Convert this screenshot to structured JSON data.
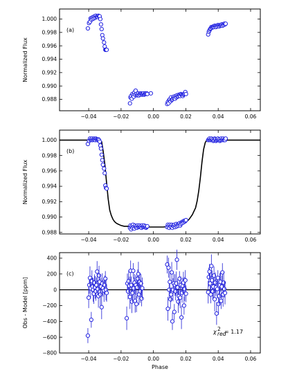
{
  "chart_data": [
    {
      "type": "scatter",
      "panel_label": "(a)",
      "xlabel": "",
      "ylabel": "Normalized Flux",
      "xlim": [
        -0.058,
        0.066
      ],
      "ylim": [
        0.9863,
        1.0015
      ],
      "xticks": [
        -0.04,
        -0.02,
        0.0,
        0.02,
        0.04,
        0.06
      ],
      "xtick_labels": [
        "−0.04",
        "−0.02",
        "0.00",
        "0.02",
        "0.04",
        "0.06"
      ],
      "yticks": [
        0.988,
        0.99,
        0.992,
        0.994,
        0.996,
        0.998,
        1.0
      ],
      "ytick_labels": [
        "0.988",
        "0.990",
        "0.992",
        "0.994",
        "0.996",
        "0.998",
        "1.000"
      ],
      "series": [
        {
          "x": [
            -0.0405,
            -0.0398,
            -0.0392,
            -0.0388,
            -0.0384,
            -0.038,
            -0.0376,
            -0.0372,
            -0.0368,
            -0.0364,
            -0.036,
            -0.0356,
            -0.0352,
            -0.0348,
            -0.0344,
            -0.034,
            -0.0336,
            -0.0332,
            -0.0328,
            -0.0324,
            -0.032,
            -0.0316,
            -0.0312,
            -0.0305,
            -0.0301,
            -0.0297,
            -0.0293,
            -0.0289,
            -0.0016,
            -0.0145,
            -0.0142,
            -0.0138,
            -0.0134,
            -0.013,
            -0.0126,
            -0.0122,
            -0.0118,
            -0.0114,
            -0.011,
            -0.0106,
            -0.0102,
            -0.0098,
            -0.0094,
            -0.009,
            -0.0086,
            -0.0082,
            -0.0078,
            -0.0074,
            -0.007,
            -0.0066,
            -0.0062,
            -0.0058,
            -0.0054,
            -0.005,
            -0.0046,
            -0.0042,
            -0.0038,
            0.0085,
            0.0089,
            0.0093,
            0.0097,
            0.0101,
            0.0105,
            0.0109,
            0.0113,
            0.0117,
            0.0121,
            0.0125,
            0.0129,
            0.0133,
            0.0137,
            0.0141,
            0.0145,
            0.0149,
            0.0153,
            0.0157,
            0.0161,
            0.0165,
            0.0169,
            0.0173,
            0.0177,
            0.0181,
            0.0185,
            0.0189,
            0.0193,
            0.0197,
            0.0201,
            0.0338,
            0.0342,
            0.0346,
            0.035,
            0.0354,
            0.0358,
            0.0362,
            0.0366,
            0.037,
            0.0374,
            0.0378,
            0.0382,
            0.0386,
            0.039,
            0.0394,
            0.0398,
            0.0402,
            0.0406,
            0.041,
            0.0414,
            0.0418,
            0.0422,
            0.0426,
            0.043,
            0.0434,
            0.0438,
            0.0442,
            0.0446
          ],
          "y": [
            0.9986,
            0.9994,
            0.9996,
            1.0001,
            0.9999,
            1.0002,
            1.0,
            1.0003,
            1.0001,
            1.0004,
            1.0002,
            1.0005,
            1.0003,
            1.0004,
            1.0003,
            1.0005,
            1.0004,
            1.0004,
            1.0,
            0.9992,
            0.9985,
            0.9976,
            0.9971,
            0.9965,
            0.9959,
            0.9954,
            0.9954,
            0.9954,
            0.9889,
            0.9874,
            0.9883,
            0.9885,
            0.9881,
            0.9888,
            0.9886,
            0.9884,
            0.989,
            0.9887,
            0.9893,
            0.9888,
            0.9886,
            0.9887,
            0.9889,
            0.9886,
            0.9888,
            0.9887,
            0.9889,
            0.9888,
            0.9887,
            0.9888,
            0.9889,
            0.9887,
            0.9888,
            0.9889,
            0.9888,
            0.9889,
            0.9888,
            0.9873,
            0.9876,
            0.9874,
            0.9879,
            0.988,
            0.9877,
            0.9883,
            0.9879,
            0.988,
            0.9882,
            0.9884,
            0.9882,
            0.9881,
            0.9885,
            0.9883,
            0.9886,
            0.9884,
            0.9885,
            0.9887,
            0.9886,
            0.9885,
            0.9888,
            0.9887,
            0.9886,
            0.9885,
            0.9887,
            0.9888,
            0.9889,
            0.9891,
            0.9888,
            0.9977,
            0.9981,
            0.9983,
            0.9985,
            0.9986,
            0.9988,
            0.9987,
            0.9988,
            0.9989,
            0.9988,
            0.999,
            0.9989,
            0.9988,
            0.999,
            0.9989,
            0.9991,
            0.999,
            0.9989,
            0.9991,
            0.999,
            0.9991,
            0.9992,
            0.999,
            0.9992,
            0.9991,
            0.9993,
            0.9992,
            0.9993
          ]
        }
      ]
    },
    {
      "type": "scatter",
      "panel_label": "(b)",
      "xlabel": "",
      "ylabel": "Normalized Flux",
      "xlim": [
        -0.058,
        0.066
      ],
      "ylim": [
        0.9878,
        1.0013
      ],
      "xticks": [
        -0.04,
        -0.02,
        0.0,
        0.02,
        0.04,
        0.06
      ],
      "xtick_labels": [
        "−0.04",
        "−0.02",
        "0.00",
        "0.02",
        "0.04",
        "0.06"
      ],
      "yticks": [
        0.988,
        0.99,
        0.992,
        0.994,
        0.996,
        0.998,
        1.0
      ],
      "ytick_labels": [
        "0.988",
        "0.990",
        "0.992",
        "0.994",
        "0.996",
        "0.998",
        "1.000"
      ],
      "model": {
        "x": [
          -0.058,
          -0.034,
          -0.032,
          -0.031,
          -0.03,
          -0.029,
          -0.028,
          -0.027,
          -0.026,
          -0.025,
          -0.024,
          -0.023,
          -0.022,
          -0.021,
          -0.02,
          -0.018,
          -0.016,
          -0.014,
          -0.012,
          -0.01,
          -0.006,
          -0.002,
          0.002,
          0.006,
          0.01,
          0.014,
          0.016,
          0.018,
          0.02,
          0.022,
          0.024,
          0.026,
          0.027,
          0.028,
          0.029,
          0.03,
          0.031,
          0.032,
          0.033,
          0.034,
          0.066
        ],
        "y": [
          1.0,
          1.0,
          0.9998,
          0.9985,
          0.9968,
          0.9946,
          0.9924,
          0.9909,
          0.9902,
          0.9897,
          0.9894,
          0.9892,
          0.9891,
          0.989,
          0.9889,
          0.9888,
          0.9888,
          0.9888,
          0.9887,
          0.9887,
          0.9887,
          0.9887,
          0.9887,
          0.9887,
          0.9888,
          0.9889,
          0.989,
          0.9891,
          0.9893,
          0.9897,
          0.9903,
          0.9912,
          0.9921,
          0.9934,
          0.9952,
          0.9972,
          0.9988,
          0.9997,
          1.0,
          1.0,
          1.0
        ]
      },
      "series": [
        {
          "x": [
            -0.0405,
            -0.0398,
            -0.0392,
            -0.0388,
            -0.0384,
            -0.038,
            -0.0376,
            -0.0372,
            -0.0368,
            -0.0364,
            -0.036,
            -0.0356,
            -0.0352,
            -0.0348,
            -0.0344,
            -0.034,
            -0.0336,
            -0.0332,
            -0.0328,
            -0.0324,
            -0.032,
            -0.0316,
            -0.0312,
            -0.0305,
            -0.0301,
            -0.0297,
            -0.0293,
            -0.0289,
            -0.0145,
            -0.0142,
            -0.0138,
            -0.0134,
            -0.013,
            -0.0126,
            -0.0122,
            -0.0118,
            -0.0114,
            -0.011,
            -0.0106,
            -0.0102,
            -0.0098,
            -0.0094,
            -0.009,
            -0.0086,
            -0.0082,
            -0.0078,
            -0.0074,
            -0.007,
            -0.0066,
            -0.0062,
            -0.0058,
            -0.0054,
            -0.005,
            -0.0046,
            -0.0042,
            -0.0038,
            0.0085,
            0.0089,
            0.0093,
            0.0097,
            0.0101,
            0.0105,
            0.0109,
            0.0113,
            0.0117,
            0.0121,
            0.0125,
            0.0129,
            0.0133,
            0.0137,
            0.0141,
            0.0145,
            0.0149,
            0.0153,
            0.0157,
            0.0161,
            0.0165,
            0.0169,
            0.0173,
            0.0177,
            0.0181,
            0.0185,
            0.0189,
            0.0193,
            0.0197,
            0.0201,
            0.0338,
            0.0342,
            0.0346,
            0.035,
            0.0354,
            0.0358,
            0.0362,
            0.0366,
            0.037,
            0.0374,
            0.0378,
            0.0382,
            0.0386,
            0.039,
            0.0394,
            0.0398,
            0.0402,
            0.0406,
            0.041,
            0.0414,
            0.0418,
            0.0422,
            0.0426,
            0.043,
            0.0434,
            0.0438,
            0.0442,
            0.0446
          ],
          "y": [
            0.9995,
            0.9999,
            1.0002,
            1.0,
            1.0001,
            1.0002,
            1.0,
            1.0001,
            1.0002,
            1.0001,
            1.0,
            1.0002,
            1.0001,
            1.0,
            1.0001,
            1.0001,
            1.0,
            0.9998,
            0.9993,
            0.9989,
            0.9981,
            0.9974,
            0.9968,
            0.9963,
            0.9957,
            0.9941,
            0.9938,
            0.9937,
            0.9886,
            0.9889,
            0.9884,
            0.9888,
            0.9886,
            0.989,
            0.9887,
            0.9885,
            0.9889,
            0.9887,
            0.9888,
            0.9886,
            0.9889,
            0.9887,
            0.9888,
            0.9889,
            0.9887,
            0.9888,
            0.9886,
            0.9889,
            0.9887,
            0.9888,
            0.9889,
            0.9887,
            0.9888,
            0.9886,
            0.9887,
            0.9888,
            0.9887,
            0.989,
            0.9888,
            0.9886,
            0.989,
            0.9888,
            0.9887,
            0.989,
            0.9886,
            0.9889,
            0.9888,
            0.989,
            0.9887,
            0.9889,
            0.9891,
            0.9888,
            0.989,
            0.9889,
            0.9891,
            0.9892,
            0.9889,
            0.9891,
            0.9893,
            0.9892,
            0.9894,
            0.9893,
            0.9895,
            0.9894,
            0.9895,
            0.9896,
            1.0,
            1.0001,
            1.0002,
            1.0,
            1.0001,
            1.0002,
            1.0,
            1.0001,
            0.9999,
            1.0,
            1.0002,
            1.0001,
            0.9999,
            1.0,
            1.0001,
            1.0002,
            1.0,
            1.0001,
            0.9999,
            1.0,
            1.0002,
            1.0,
            1.0001,
            1.0002,
            1.0,
            1.0001,
            1.0,
            1.0002
          ]
        }
      ]
    },
    {
      "type": "scatter",
      "panel_label": "(c)",
      "xlabel": "Phase",
      "ylabel": "Obs - Model [ppm]",
      "xlim": [
        -0.058,
        0.066
      ],
      "ylim": [
        -800,
        470
      ],
      "xticks": [
        -0.04,
        -0.02,
        0.0,
        0.02,
        0.04,
        0.06
      ],
      "xtick_labels": [
        "−0.04",
        "−0.02",
        "0.00",
        "0.02",
        "0.04",
        "0.06"
      ],
      "yticks": [
        -800,
        -600,
        -400,
        -200,
        0,
        200,
        400
      ],
      "ytick_labels": [
        "−800",
        "−600",
        "−400",
        "−200",
        "0",
        "200",
        "400"
      ],
      "annotation": {
        "prefix": "χ",
        "superscript": "2",
        "subscript": "red",
        "value": "= 1.17"
      },
      "series": [
        {
          "x": [
            -0.0405,
            -0.04,
            -0.0396,
            -0.0392,
            -0.0388,
            -0.0384,
            -0.038,
            -0.0376,
            -0.0372,
            -0.0368,
            -0.0364,
            -0.036,
            -0.0356,
            -0.0352,
            -0.0348,
            -0.0344,
            -0.034,
            -0.0336,
            -0.0332,
            -0.0328,
            -0.0324,
            -0.032,
            -0.0316,
            -0.0312,
            -0.0305,
            -0.0301,
            -0.0297,
            -0.0293,
            -0.0289,
            -0.0165,
            -0.0161,
            -0.0157,
            -0.0153,
            -0.0149,
            -0.0145,
            -0.0141,
            -0.0137,
            -0.0133,
            -0.0129,
            -0.0125,
            -0.0121,
            -0.0117,
            -0.0113,
            -0.0109,
            -0.0105,
            -0.0101,
            -0.0097,
            -0.0093,
            -0.0089,
            -0.0085,
            -0.0081,
            -0.0077,
            -0.0073,
            -0.0069,
            0.0085,
            0.0089,
            0.0093,
            0.0097,
            0.0101,
            0.0105,
            0.0109,
            0.0113,
            0.0117,
            0.0121,
            0.0125,
            0.0129,
            0.0133,
            0.0137,
            0.0141,
            0.0145,
            0.0149,
            0.0153,
            0.0157,
            0.0161,
            0.0165,
            0.0169,
            0.0173,
            0.0177,
            0.0181,
            0.0185,
            0.0189,
            0.0193,
            0.0197,
            0.0201,
            0.0338,
            0.0342,
            0.0346,
            0.035,
            0.0354,
            0.0358,
            0.0362,
            0.0366,
            0.037,
            0.0374,
            0.0378,
            0.0382,
            0.0386,
            0.039,
            0.0394,
            0.0398,
            0.0402,
            0.0406,
            0.041,
            0.0414,
            0.0418,
            0.0422,
            0.0426,
            0.043,
            0.0434,
            0.0438,
            0.0442
          ],
          "y": [
            -580,
            -100,
            60,
            150,
            20,
            -380,
            110,
            40,
            0,
            -50,
            90,
            30,
            -20,
            60,
            230,
            10,
            -80,
            180,
            100,
            -60,
            40,
            -220,
            80,
            20,
            -10,
            60,
            140,
            0,
            -40,
            -360,
            80,
            -20,
            110,
            50,
            -90,
            240,
            60,
            -150,
            -40,
            240,
            20,
            90,
            -140,
            60,
            -180,
            30,
            140,
            200,
            -60,
            100,
            -20,
            80,
            -110,
            20,
            320,
            -240,
            280,
            0,
            100,
            -120,
            -60,
            220,
            -400,
            0,
            80,
            -280,
            60,
            -20,
            80,
            380,
            30,
            -150,
            -80,
            140,
            -100,
            60,
            -350,
            -40,
            50,
            90,
            -200,
            10,
            120,
            -50,
            -30,
            160,
            230,
            80,
            -60,
            300,
            120,
            -20,
            40,
            180,
            -120,
            90,
            30,
            -300,
            10,
            150,
            -180,
            -80,
            60,
            100,
            -140,
            40,
            220,
            -60,
            90,
            10,
            -40
          ]
        }
      ]
    }
  ]
}
